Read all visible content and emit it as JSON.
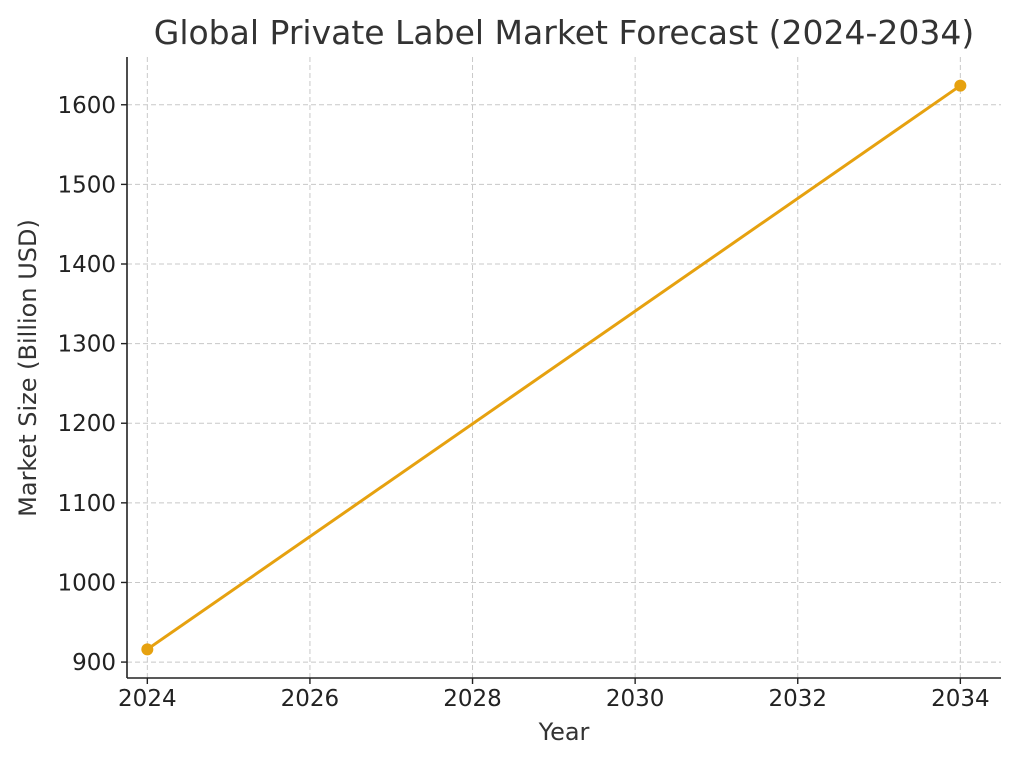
{
  "chart_data": {
    "type": "line",
    "title": "Global Private Label Market Forecast (2024-2034)",
    "xlabel": "Year",
    "ylabel": "Market Size (Billion USD)",
    "xlim": [
      2023.75,
      2034.5
    ],
    "ylim": [
      880,
      1660
    ],
    "x_ticks": [
      2024,
      2026,
      2028,
      2030,
      2032,
      2034
    ],
    "y_ticks": [
      900,
      1000,
      1100,
      1200,
      1300,
      1400,
      1500,
      1600
    ],
    "grid": true,
    "series": [
      {
        "color": "#e6a10f",
        "marker": "circle",
        "points": [
          {
            "x": 2024,
            "y": 916
          },
          {
            "x": 2034,
            "y": 1624
          }
        ]
      }
    ]
  }
}
